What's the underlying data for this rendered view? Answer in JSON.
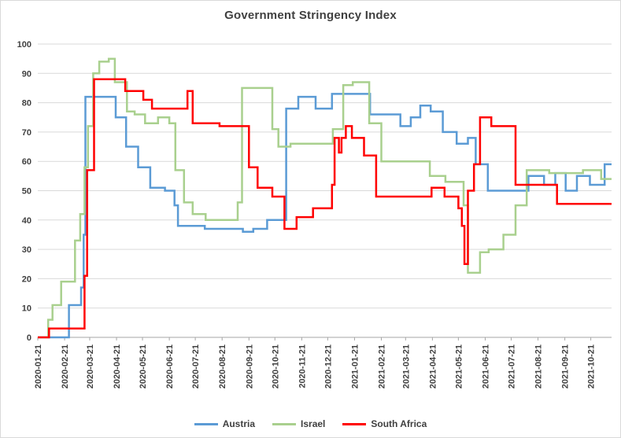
{
  "chart_title": "Government Stringency Index",
  "chart_data": {
    "type": "line",
    "title": "Government Stringency Index",
    "xlabel": "",
    "ylabel": "",
    "ylim": [
      0,
      100
    ],
    "grid": "horizontal",
    "legend_position": "bottom",
    "interpolation": "step",
    "y_ticks": [
      0,
      10,
      20,
      30,
      40,
      50,
      60,
      70,
      80,
      90,
      100
    ],
    "x_ticks": [
      "2020-01-21",
      "2020-02-21",
      "2020-03-21",
      "2020-04-21",
      "2020-05-21",
      "2020-06-21",
      "2020-07-21",
      "2020-08-21",
      "2020-09-21",
      "2020-10-21",
      "2020-11-21",
      "2020-12-21",
      "2021-01-21",
      "2021-02-21",
      "2021-03-21",
      "2021-04-21",
      "2021-05-21",
      "2021-06-21",
      "2021-07-21",
      "2021-08-21",
      "2021-09-21",
      "2021-10-21"
    ],
    "series": [
      {
        "name": "Austria",
        "color": "#5b9bd5",
        "points": [
          [
            "2020-01-21",
            0
          ],
          [
            "2020-02-26",
            11
          ],
          [
            "2020-03-11",
            17
          ],
          [
            "2020-03-14",
            35
          ],
          [
            "2020-03-16",
            82
          ],
          [
            "2020-04-20",
            75
          ],
          [
            "2020-05-02",
            65
          ],
          [
            "2020-05-16",
            58
          ],
          [
            "2020-05-30",
            51
          ],
          [
            "2020-06-16",
            50
          ],
          [
            "2020-06-27",
            45
          ],
          [
            "2020-07-01",
            38
          ],
          [
            "2020-08-01",
            37
          ],
          [
            "2020-09-14",
            36
          ],
          [
            "2020-09-26",
            37
          ],
          [
            "2020-10-12",
            40
          ],
          [
            "2020-11-03",
            78
          ],
          [
            "2020-11-17",
            82
          ],
          [
            "2020-12-07",
            78
          ],
          [
            "2020-12-26",
            83
          ],
          [
            "2021-02-08",
            76
          ],
          [
            "2021-03-15",
            72
          ],
          [
            "2021-03-27",
            75
          ],
          [
            "2021-04-07",
            79
          ],
          [
            "2021-04-19",
            77
          ],
          [
            "2021-05-03",
            70
          ],
          [
            "2021-05-19",
            66
          ],
          [
            "2021-06-01",
            68
          ],
          [
            "2021-06-10",
            59
          ],
          [
            "2021-06-24",
            50
          ],
          [
            "2021-08-10",
            55
          ],
          [
            "2021-08-28",
            52
          ],
          [
            "2021-09-10",
            56
          ],
          [
            "2021-09-22",
            50
          ],
          [
            "2021-10-05",
            55
          ],
          [
            "2021-10-20",
            52
          ],
          [
            "2021-11-06",
            59
          ],
          [
            "2021-11-14",
            59
          ]
        ]
      },
      {
        "name": "Israel",
        "color": "#a9d08e",
        "points": [
          [
            "2020-01-21",
            0
          ],
          [
            "2020-02-02",
            6
          ],
          [
            "2020-02-07",
            11
          ],
          [
            "2020-02-17",
            19
          ],
          [
            "2020-03-04",
            33
          ],
          [
            "2020-03-10",
            42
          ],
          [
            "2020-03-15",
            58
          ],
          [
            "2020-03-19",
            72
          ],
          [
            "2020-03-25",
            90
          ],
          [
            "2020-04-01",
            94
          ],
          [
            "2020-04-12",
            95
          ],
          [
            "2020-04-19",
            87
          ],
          [
            "2020-05-03",
            77
          ],
          [
            "2020-05-12",
            76
          ],
          [
            "2020-05-24",
            73
          ],
          [
            "2020-06-08",
            75
          ],
          [
            "2020-06-21",
            73
          ],
          [
            "2020-06-28",
            57
          ],
          [
            "2020-07-08",
            46
          ],
          [
            "2020-07-18",
            42
          ],
          [
            "2020-08-02",
            40
          ],
          [
            "2020-09-08",
            46
          ],
          [
            "2020-09-13",
            85
          ],
          [
            "2020-10-18",
            71
          ],
          [
            "2020-10-25",
            65
          ],
          [
            "2020-11-08",
            66
          ],
          [
            "2020-12-27",
            71
          ],
          [
            "2021-01-08",
            86
          ],
          [
            "2021-01-19",
            87
          ],
          [
            "2021-02-07",
            73
          ],
          [
            "2021-02-21",
            60
          ],
          [
            "2021-04-18",
            55
          ],
          [
            "2021-05-06",
            53
          ],
          [
            "2021-05-27",
            45
          ],
          [
            "2021-06-01",
            22
          ],
          [
            "2021-06-15",
            29
          ],
          [
            "2021-06-25",
            30
          ],
          [
            "2021-07-12",
            35
          ],
          [
            "2021-07-26",
            45
          ],
          [
            "2021-08-08",
            57
          ],
          [
            "2021-09-03",
            56
          ],
          [
            "2021-10-12",
            57
          ],
          [
            "2021-11-02",
            54
          ],
          [
            "2021-11-14",
            54
          ]
        ]
      },
      {
        "name": "South Africa",
        "color": "#ff0000",
        "points": [
          [
            "2020-01-21",
            0
          ],
          [
            "2020-02-03",
            3
          ],
          [
            "2020-03-15",
            21
          ],
          [
            "2020-03-18",
            57
          ],
          [
            "2020-03-26",
            88
          ],
          [
            "2020-05-01",
            84
          ],
          [
            "2020-05-22",
            81
          ],
          [
            "2020-06-01",
            78
          ],
          [
            "2020-07-12",
            84
          ],
          [
            "2020-07-18",
            73
          ],
          [
            "2020-08-18",
            72
          ],
          [
            "2020-09-21",
            58
          ],
          [
            "2020-10-01",
            51
          ],
          [
            "2020-10-18",
            48
          ],
          [
            "2020-11-01",
            37
          ],
          [
            "2020-11-15",
            41
          ],
          [
            "2020-12-04",
            44
          ],
          [
            "2020-12-26",
            52
          ],
          [
            "2020-12-29",
            68
          ],
          [
            "2021-01-03",
            63
          ],
          [
            "2021-01-06",
            68
          ],
          [
            "2021-01-11",
            72
          ],
          [
            "2021-01-18",
            68
          ],
          [
            "2021-02-01",
            62
          ],
          [
            "2021-02-15",
            48
          ],
          [
            "2021-04-20",
            51
          ],
          [
            "2021-05-05",
            48
          ],
          [
            "2021-05-21",
            44
          ],
          [
            "2021-05-25",
            38
          ],
          [
            "2021-05-28",
            25
          ],
          [
            "2021-06-01",
            50
          ],
          [
            "2021-06-08",
            59
          ],
          [
            "2021-06-15",
            75
          ],
          [
            "2021-06-28",
            72
          ],
          [
            "2021-07-26",
            52
          ],
          [
            "2021-09-12",
            45.5
          ],
          [
            "2021-11-14",
            45.5
          ]
        ]
      }
    ]
  }
}
